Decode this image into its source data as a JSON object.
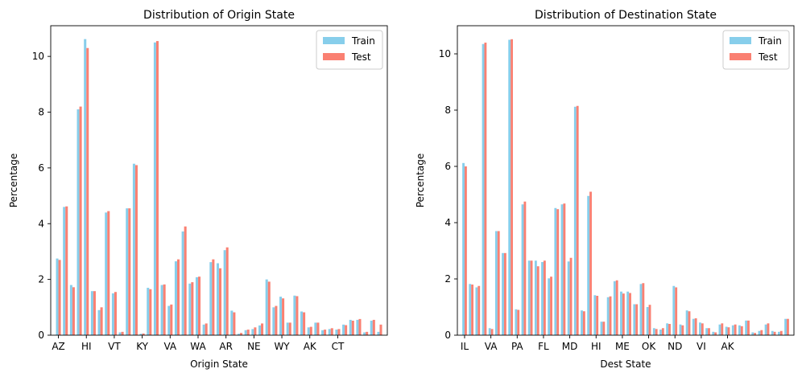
{
  "chart_data": [
    {
      "type": "bar",
      "title": "Distribution of Origin State",
      "xlabel": "Origin State",
      "ylabel": "Percentage",
      "ylim": [
        0,
        11.1
      ],
      "yticks": [
        0,
        2,
        4,
        6,
        8,
        10
      ],
      "xtick_labels": [
        "AZ",
        "HI",
        "VT",
        "KY",
        "VA",
        "WA",
        "AR",
        "NE",
        "WY",
        "AK",
        "CT"
      ],
      "xtick_every": 4,
      "grid": false,
      "legend_position": "top-right",
      "colors": {
        "Train": "#87CEEB",
        "Test": "#FA8072"
      },
      "series": [
        {
          "name": "Train",
          "values": [
            2.75,
            4.6,
            1.8,
            8.1,
            10.62,
            1.58,
            0.9,
            4.4,
            1.5,
            0.1,
            4.55,
            6.15,
            0.05,
            1.7,
            10.5,
            1.8,
            1.05,
            2.65,
            3.72,
            1.85,
            2.08,
            0.38,
            2.62,
            2.58,
            3.05,
            0.88,
            0.05,
            0.18,
            0.22,
            0.35,
            2.0,
            1.0,
            1.38,
            0.45,
            1.42,
            0.85,
            0.28,
            0.45,
            0.18,
            0.22,
            0.2,
            0.38,
            0.55,
            0.55,
            0.1,
            0.52,
            0.12
          ]
        },
        {
          "name": "Test",
          "values": [
            2.7,
            4.62,
            1.72,
            8.2,
            10.3,
            1.58,
            1.0,
            4.45,
            1.55,
            0.12,
            4.55,
            6.1,
            0.06,
            1.65,
            10.55,
            1.82,
            1.1,
            2.72,
            3.9,
            1.9,
            2.1,
            0.42,
            2.72,
            2.4,
            3.15,
            0.82,
            0.08,
            0.2,
            0.28,
            0.42,
            1.92,
            1.05,
            1.32,
            0.45,
            1.4,
            0.82,
            0.3,
            0.45,
            0.2,
            0.25,
            0.22,
            0.36,
            0.52,
            0.58,
            0.12,
            0.55,
            0.38
          ]
        }
      ]
    },
    {
      "type": "bar",
      "title": "Distribution of Destination State",
      "xlabel": "Dest State",
      "ylabel": "Percentage",
      "ylim": [
        0,
        11.0
      ],
      "yticks": [
        0,
        2,
        4,
        6,
        8,
        10
      ],
      "xtick_labels": [
        "IL",
        "VA",
        "PA",
        "FL",
        "MD",
        "HI",
        "ME",
        "OK",
        "ND",
        "VI",
        "AK"
      ],
      "xtick_every": 4,
      "grid": false,
      "legend_position": "top-right",
      "colors": {
        "Train": "#87CEEB",
        "Test": "#FA8072"
      },
      "series": [
        {
          "name": "Train",
          "values": [
            6.12,
            1.82,
            1.7,
            10.35,
            0.25,
            3.7,
            2.92,
            10.5,
            0.92,
            4.65,
            2.65,
            2.65,
            2.6,
            2.02,
            4.52,
            4.65,
            2.62,
            8.12,
            0.88,
            4.95,
            1.42,
            0.48,
            1.35,
            1.92,
            1.55,
            1.55,
            1.1,
            1.82,
            1.0,
            0.25,
            0.2,
            0.42,
            1.75,
            0.38,
            0.88,
            0.58,
            0.45,
            0.25,
            0.12,
            0.38,
            0.3,
            0.35,
            0.35,
            0.52,
            0.1,
            0.15,
            0.38,
            0.15,
            0.12,
            0.58
          ]
        },
        {
          "name": "Test",
          "values": [
            6.0,
            1.8,
            1.75,
            10.4,
            0.22,
            3.7,
            2.92,
            10.52,
            0.9,
            4.75,
            2.65,
            2.45,
            2.65,
            2.08,
            4.48,
            4.68,
            2.75,
            8.15,
            0.85,
            5.1,
            1.4,
            0.48,
            1.38,
            1.95,
            1.48,
            1.5,
            1.1,
            1.85,
            1.08,
            0.22,
            0.25,
            0.4,
            1.7,
            0.35,
            0.85,
            0.6,
            0.42,
            0.25,
            0.1,
            0.42,
            0.28,
            0.38,
            0.32,
            0.52,
            0.08,
            0.18,
            0.42,
            0.12,
            0.15,
            0.58
          ]
        }
      ]
    }
  ]
}
